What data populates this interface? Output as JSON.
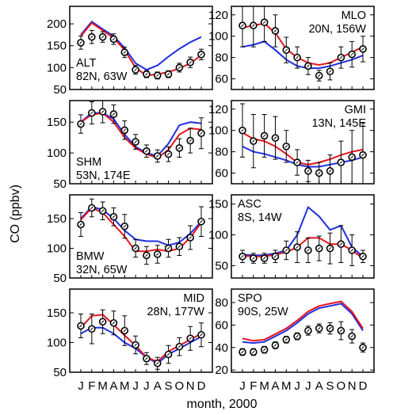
{
  "figure": {
    "ylabel": "CO (ppbv)",
    "xlabel": "month, 2000",
    "month_ticks": [
      "J",
      "F",
      "M",
      "A",
      "M",
      "J",
      "J",
      "A",
      "S",
      "O",
      "N",
      "D"
    ],
    "colors": {
      "observed": "#000000",
      "red_model": "#e8141b",
      "blue_model": "#1f2fe0",
      "frame": "#000000"
    }
  },
  "chart_data": [
    {
      "type": "line",
      "station": "ALT",
      "location": "82N, 63W",
      "ylim": [
        50,
        240
      ],
      "yticks": [
        50,
        100,
        150,
        200
      ],
      "x": [
        1,
        2,
        3,
        4,
        5,
        6,
        7,
        8,
        9,
        10,
        11,
        12
      ],
      "series": [
        {
          "values": [
            175,
            205,
            188,
            172,
            145,
            110,
            95,
            105,
            125,
            143,
            158,
            170
          ]
        },
        {
          "values": [
            172,
            202,
            185,
            168,
            140,
            100,
            82,
            85,
            90,
            98,
            110,
            128
          ]
        },
        {
          "values": [
            157,
            170,
            170,
            165,
            135,
            95,
            85,
            82,
            85,
            100,
            112,
            130
          ],
          "error": [
            15,
            15,
            12,
            12,
            12,
            10,
            8,
            8,
            8,
            10,
            12,
            12
          ]
        }
      ]
    },
    {
      "type": "line",
      "station": "SHM",
      "location": "53N, 174E",
      "ylim": [
        50,
        185
      ],
      "yticks": [
        50,
        100,
        150
      ],
      "x": [
        1,
        2,
        3,
        4,
        5,
        6,
        7,
        8,
        9,
        10,
        11,
        12
      ],
      "series": [
        {
          "values": [
            150,
            165,
            165,
            155,
            130,
            110,
            100,
            95,
            115,
            145,
            150,
            148
          ]
        },
        {
          "values": [
            150,
            162,
            165,
            150,
            125,
            108,
            98,
            92,
            105,
            130,
            140,
            138
          ]
        },
        {
          "values": [
            147,
            165,
            167,
            163,
            137,
            118,
            103,
            95,
            98,
            108,
            120,
            132
          ],
          "error": [
            15,
            18,
            18,
            15,
            15,
            12,
            10,
            10,
            12,
            15,
            20,
            25
          ]
        }
      ]
    },
    {
      "type": "line",
      "station": "BMW",
      "location": "32N, 65W",
      "ylim": [
        50,
        190
      ],
      "yticks": [
        50,
        100,
        150
      ],
      "x": [
        1,
        2,
        3,
        4,
        5,
        6,
        7,
        8,
        9,
        10,
        11,
        12
      ],
      "series": [
        {
          "values": [
            150,
            170,
            165,
            150,
            130,
            115,
            112,
            112,
            105,
            110,
            125,
            145
          ]
        },
        {
          "values": [
            148,
            168,
            160,
            140,
            120,
            95,
            95,
            98,
            95,
            100,
            118,
            143
          ]
        },
        {
          "values": [
            140,
            168,
            163,
            153,
            137,
            100,
            88,
            90,
            100,
            103,
            118,
            145
          ],
          "error": [
            20,
            15,
            15,
            15,
            20,
            15,
            15,
            15,
            15,
            15,
            20,
            25
          ]
        }
      ]
    },
    {
      "type": "line",
      "station": "MID",
      "location": "28N, 177W",
      "ylim": [
        50,
        190
      ],
      "yticks": [
        50,
        100,
        150
      ],
      "x": [
        1,
        2,
        3,
        4,
        5,
        6,
        7,
        8,
        9,
        10,
        11,
        12
      ],
      "series": [
        {
          "values": [
            115,
            125,
            125,
            115,
            100,
            90,
            75,
            65,
            80,
            90,
            100,
            110
          ]
        },
        {
          "values": [
            125,
            145,
            147,
            130,
            112,
            95,
            75,
            68,
            85,
            95,
            105,
            115
          ]
        },
        {
          "values": [
            128,
            123,
            135,
            133,
            120,
            96,
            73,
            65,
            80,
            93,
            107,
            113
          ],
          "error": [
            20,
            25,
            20,
            20,
            25,
            15,
            10,
            10,
            15,
            15,
            20,
            20
          ]
        }
      ]
    },
    {
      "type": "line",
      "station": "MLO",
      "location": "20N, 156W",
      "ylim": [
        50,
        128
      ],
      "yticks": [
        60,
        80,
        100,
        120
      ],
      "x": [
        1,
        2,
        3,
        4,
        5,
        6,
        7,
        8,
        9,
        10,
        11,
        12
      ],
      "series": [
        {
          "values": [
            90,
            92,
            95,
            87,
            78,
            72,
            70,
            70,
            72,
            75,
            78,
            82
          ]
        },
        {
          "values": [
            108,
            110,
            112,
            103,
            88,
            80,
            75,
            73,
            75,
            80,
            85,
            90
          ]
        },
        {
          "values": [
            110,
            110,
            113,
            105,
            87,
            80,
            72,
            63,
            67,
            80,
            83,
            88
          ],
          "error": [
            20,
            20,
            18,
            15,
            12,
            10,
            8,
            5,
            8,
            10,
            12,
            12
          ]
        }
      ]
    },
    {
      "type": "line",
      "station": "GMI",
      "location": "13N, 145E",
      "ylim": [
        50,
        128
      ],
      "yticks": [
        60,
        80,
        100,
        120
      ],
      "x": [
        1,
        2,
        3,
        4,
        5,
        6,
        7,
        8,
        9,
        10,
        11,
        12
      ],
      "series": [
        {
          "values": [
            85,
            80,
            78,
            75,
            72,
            68,
            66,
            66,
            68,
            70,
            72,
            75
          ]
        },
        {
          "values": [
            98,
            92,
            90,
            85,
            78,
            70,
            68,
            70,
            73,
            77,
            80,
            82
          ]
        },
        {
          "values": [
            100,
            90,
            95,
            93,
            85,
            70,
            62,
            60,
            62,
            70,
            75,
            77
          ],
          "error": [
            25,
            25,
            20,
            20,
            15,
            12,
            10,
            10,
            15,
            20,
            25,
            30
          ]
        }
      ]
    },
    {
      "type": "line",
      "station": "ASC",
      "location": "8S, 14W",
      "ylim": [
        30,
        165
      ],
      "yticks": [
        50,
        100,
        150
      ],
      "x": [
        1,
        2,
        3,
        4,
        5,
        6,
        7,
        8,
        9,
        10,
        11,
        12
      ],
      "series": [
        {
          "values": [
            68,
            67,
            67,
            70,
            75,
            100,
            145,
            130,
            108,
            115,
            80,
            65
          ]
        },
        {
          "values": [
            66,
            65,
            65,
            68,
            72,
            80,
            95,
            95,
            85,
            85,
            75,
            62
          ]
        },
        {
          "values": [
            65,
            62,
            62,
            65,
            75,
            80,
            75,
            78,
            78,
            85,
            75,
            65
          ],
          "error": [
            10,
            8,
            8,
            10,
            15,
            25,
            20,
            20,
            25,
            30,
            25,
            10
          ]
        }
      ]
    },
    {
      "type": "line",
      "station": "SPO",
      "location": "90S, 25W",
      "ylim": [
        18,
        92
      ],
      "yticks": [
        20,
        40,
        60,
        80
      ],
      "x": [
        1,
        2,
        3,
        4,
        5,
        6,
        7,
        8,
        9,
        10,
        11,
        12
      ],
      "series": [
        {
          "values": [
            45,
            44,
            45,
            50,
            55,
            62,
            70,
            75,
            77,
            79,
            70,
            55
          ]
        },
        {
          "values": [
            48,
            46,
            47,
            52,
            57,
            64,
            72,
            77,
            79,
            81,
            72,
            57
          ]
        },
        {
          "values": [
            36,
            36,
            38,
            42,
            47,
            50,
            55,
            57,
            57,
            55,
            50,
            40
          ],
          "error": [
            3,
            3,
            3,
            3,
            3,
            3,
            4,
            4,
            5,
            8,
            6,
            4
          ]
        }
      ]
    }
  ]
}
